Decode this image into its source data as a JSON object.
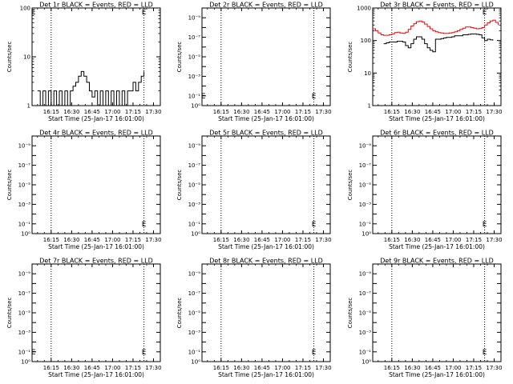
{
  "chart_data": [
    {
      "type": "line",
      "title": "Det 1r BLACK = Events, RED = LLD",
      "xlabel": "Start Time (25-Jan-17 16:01:00)",
      "ylabel": "Counts/sec",
      "y_scale": "log",
      "ylim": [
        1,
        100
      ],
      "y_ticks": [
        {
          "value": 1,
          "label": "1"
        },
        {
          "value": 10,
          "label": "10"
        },
        {
          "value": 100,
          "label": "100"
        }
      ],
      "xlim_minutes": [
        0,
        94
      ],
      "x_ticks": [
        "16:15",
        "16:30",
        "16:45",
        "17:00",
        "17:15",
        "17:30"
      ],
      "x_tick_minutes": [
        14,
        29,
        44,
        59,
        74,
        89
      ],
      "marker_lines_minutes": [
        14,
        82
      ],
      "e_markers": [
        {
          "x_minutes": 1,
          "y": 100
        },
        {
          "x_minutes": 82,
          "y": 100
        }
      ],
      "series": [
        {
          "color": "#000000",
          "x_minutes": [
            4,
            6,
            8,
            10,
            12,
            14,
            16,
            18,
            20,
            22,
            24,
            26,
            28,
            30,
            32,
            34,
            36,
            38,
            40,
            42,
            44,
            46,
            48,
            50,
            52,
            54,
            56,
            58,
            60,
            62,
            64,
            66,
            68,
            70,
            72,
            74,
            76,
            78,
            80,
            82
          ],
          "values": [
            2,
            1,
            2,
            1,
            2,
            1,
            2,
            1,
            2,
            1,
            2,
            1,
            2,
            2.5,
            3,
            4,
            5,
            4,
            3,
            2,
            1.5,
            2,
            1,
            2,
            1,
            2,
            1,
            2,
            1,
            2,
            1,
            2,
            1,
            2,
            2,
            3,
            2,
            3,
            4,
            5
          ]
        }
      ]
    },
    {
      "type": "line",
      "title": "Det 2r BLACK = Events, RED = LLD",
      "xlabel": "Start Time (25-Jan-17 16:01:00)",
      "ylabel": "Counts/sec",
      "y_scale": "log",
      "ylim": [
        1,
        1e-10
      ],
      "y_ticks": [
        {
          "value": 1,
          "label": "10⁰"
        },
        {
          "value": 0.1,
          "label": "10⁻¹"
        },
        {
          "value": 0.001,
          "label": "10⁻³"
        },
        {
          "value": 1e-05,
          "label": "10⁻⁵"
        },
        {
          "value": 1e-07,
          "label": "10⁻⁷"
        },
        {
          "value": 1e-09,
          "label": "10⁻⁹"
        }
      ],
      "xlim_minutes": [
        0,
        94
      ],
      "x_ticks": [
        "16:15",
        "16:30",
        "16:45",
        "17:00",
        "17:15",
        "17:30"
      ],
      "x_tick_minutes": [
        14,
        29,
        44,
        59,
        74,
        89
      ],
      "marker_lines_minutes": [
        14,
        82
      ],
      "e_markers": [
        {
          "x_minutes": 1,
          "y": 0.1
        },
        {
          "x_minutes": 82,
          "y": 0.1
        }
      ],
      "series": []
    },
    {
      "type": "line",
      "title": "Det 3r BLACK = Events, RED = LLD",
      "xlabel": "Start Time (25-Jan-17 16:01:00)",
      "ylabel": "Counts/sec",
      "y_scale": "log",
      "ylim": [
        1,
        1000
      ],
      "y_ticks": [
        {
          "value": 1,
          "label": "1"
        },
        {
          "value": 10,
          "label": "10"
        },
        {
          "value": 100,
          "label": "100"
        },
        {
          "value": 1000,
          "label": "1000"
        }
      ],
      "xlim_minutes": [
        0,
        94
      ],
      "x_ticks": [
        "16:15",
        "16:30",
        "16:45",
        "17:00",
        "17:15",
        "17:30"
      ],
      "x_tick_minutes": [
        14,
        29,
        44,
        59,
        74,
        89
      ],
      "marker_lines_minutes": [
        14,
        82
      ],
      "e_markers": [
        {
          "x_minutes": 82,
          "y": 1000
        }
      ],
      "series": [
        {
          "color": "#000000",
          "x_minutes": [
            8,
            10,
            12,
            14,
            16,
            18,
            20,
            22,
            24,
            26,
            28,
            30,
            32,
            34,
            36,
            38,
            40,
            42,
            44,
            46,
            48,
            50,
            52,
            54,
            56,
            58,
            60,
            62,
            64,
            66,
            68,
            70,
            72,
            74,
            76,
            78,
            80,
            82,
            84,
            86,
            88
          ],
          "values": [
            80,
            85,
            90,
            90,
            90,
            95,
            95,
            90,
            70,
            60,
            80,
            110,
            130,
            130,
            110,
            80,
            60,
            50,
            45,
            110,
            110,
            115,
            120,
            125,
            125,
            130,
            140,
            140,
            140,
            150,
            150,
            155,
            160,
            160,
            155,
            150,
            120,
            100,
            110,
            105,
            100
          ]
        },
        {
          "color": "#ff0000",
          "x_minutes": [
            0,
            2,
            4,
            6,
            8,
            10,
            12,
            14,
            16,
            18,
            20,
            22,
            24,
            26,
            28,
            30,
            32,
            34,
            36,
            38,
            40,
            42,
            44,
            46,
            48,
            50,
            52,
            54,
            56,
            58,
            60,
            62,
            64,
            66,
            68,
            70,
            72,
            74,
            76,
            78,
            80,
            82,
            84,
            86,
            88,
            90,
            92
          ],
          "values": [
            230,
            200,
            170,
            150,
            145,
            145,
            150,
            160,
            175,
            180,
            170,
            165,
            180,
            220,
            280,
            330,
            380,
            400,
            370,
            320,
            270,
            230,
            200,
            185,
            175,
            170,
            165,
            165,
            170,
            175,
            185,
            200,
            220,
            240,
            260,
            260,
            250,
            240,
            230,
            235,
            250,
            300,
            350,
            400,
            420,
            360,
            300
          ]
        }
      ]
    },
    {
      "type": "line",
      "title": "Det 4r BLACK = Events, RED = LLD",
      "xlabel": "Start Time (25-Jan-17 16:01:00)",
      "ylabel": "Counts/sec",
      "y_scale": "log",
      "ylim": [
        1,
        1e-10
      ],
      "y_ticks": [
        {
          "value": 1,
          "label": "10⁰"
        },
        {
          "value": 0.1,
          "label": "10⁻¹"
        },
        {
          "value": 0.001,
          "label": "10⁻³"
        },
        {
          "value": 1e-05,
          "label": "10⁻⁵"
        },
        {
          "value": 1e-07,
          "label": "10⁻⁷"
        },
        {
          "value": 1e-09,
          "label": "10⁻⁹"
        }
      ],
      "xlim_minutes": [
        0,
        94
      ],
      "x_ticks": [
        "16:15",
        "16:30",
        "16:45",
        "17:00",
        "17:15",
        "17:30"
      ],
      "x_tick_minutes": [
        14,
        29,
        44,
        59,
        74,
        89
      ],
      "marker_lines_minutes": [
        14,
        82
      ],
      "e_markers": [
        {
          "x_minutes": 82,
          "y": 0.1
        }
      ],
      "series": []
    },
    {
      "type": "line",
      "title": "Det 5r BLACK = Events, RED = LLD",
      "xlabel": "Start Time (25-Jan-17 16:01:00)",
      "ylabel": "Counts/sec",
      "y_scale": "log",
      "ylim": [
        1,
        1e-10
      ],
      "y_ticks": [
        {
          "value": 1,
          "label": "10⁰"
        },
        {
          "value": 0.1,
          "label": "10⁻¹"
        },
        {
          "value": 0.001,
          "label": "10⁻³"
        },
        {
          "value": 1e-05,
          "label": "10⁻⁵"
        },
        {
          "value": 1e-07,
          "label": "10⁻⁷"
        },
        {
          "value": 1e-09,
          "label": "10⁻⁹"
        }
      ],
      "xlim_minutes": [
        0,
        94
      ],
      "x_ticks": [
        "16:15",
        "16:30",
        "16:45",
        "17:00",
        "17:15",
        "17:30"
      ],
      "x_tick_minutes": [
        14,
        29,
        44,
        59,
        74,
        89
      ],
      "marker_lines_minutes": [
        14,
        82
      ],
      "e_markers": [
        {
          "x_minutes": 82,
          "y": 0.1
        }
      ],
      "series": []
    },
    {
      "type": "line",
      "title": "Det 6r BLACK = Events, RED = LLD",
      "xlabel": "Start Time (25-Jan-17 16:01:00)",
      "ylabel": "Counts/sec",
      "y_scale": "log",
      "ylim": [
        1,
        1e-10
      ],
      "y_ticks": [
        {
          "value": 1,
          "label": "10⁰"
        },
        {
          "value": 0.1,
          "label": "10⁻¹"
        },
        {
          "value": 0.001,
          "label": "10⁻³"
        },
        {
          "value": 1e-05,
          "label": "10⁻⁵"
        },
        {
          "value": 1e-07,
          "label": "10⁻⁷"
        },
        {
          "value": 1e-09,
          "label": "10⁻⁹"
        }
      ],
      "xlim_minutes": [
        0,
        94
      ],
      "x_ticks": [
        "16:15",
        "16:30",
        "16:45",
        "17:00",
        "17:15",
        "17:30"
      ],
      "x_tick_minutes": [
        14,
        29,
        44,
        59,
        74,
        89
      ],
      "marker_lines_minutes": [
        14,
        82
      ],
      "e_markers": [
        {
          "x_minutes": 82,
          "y": 0.1
        }
      ],
      "series": []
    },
    {
      "type": "line",
      "title": "Det 7r BLACK = Events, RED = LLD",
      "xlabel": "Start Time (25-Jan-17 16:01:00)",
      "ylabel": "Counts/sec",
      "y_scale": "log",
      "ylim": [
        1,
        1e-10
      ],
      "y_ticks": [
        {
          "value": 1,
          "label": "10⁰"
        },
        {
          "value": 0.1,
          "label": "10⁻¹"
        },
        {
          "value": 0.001,
          "label": "10⁻³"
        },
        {
          "value": 1e-05,
          "label": "10⁻⁵"
        },
        {
          "value": 1e-07,
          "label": "10⁻⁷"
        },
        {
          "value": 1e-09,
          "label": "10⁻⁹"
        }
      ],
      "xlim_minutes": [
        0,
        94
      ],
      "x_ticks": [
        "16:15",
        "16:30",
        "16:45",
        "17:00",
        "17:15",
        "17:30"
      ],
      "x_tick_minutes": [
        14,
        29,
        44,
        59,
        74,
        89
      ],
      "marker_lines_minutes": [
        14,
        82
      ],
      "e_markers": [
        {
          "x_minutes": 1,
          "y": 0.1
        },
        {
          "x_minutes": 82,
          "y": 0.1
        }
      ],
      "series": []
    },
    {
      "type": "line",
      "title": "Det 8r BLACK = Events, RED = LLD",
      "xlabel": "Start Time (25-Jan-17 16:01:00)",
      "ylabel": "Counts/sec",
      "y_scale": "log",
      "ylim": [
        1,
        1e-10
      ],
      "y_ticks": [
        {
          "value": 1,
          "label": "10⁰"
        },
        {
          "value": 0.1,
          "label": "10⁻¹"
        },
        {
          "value": 0.001,
          "label": "10⁻³"
        },
        {
          "value": 1e-05,
          "label": "10⁻⁵"
        },
        {
          "value": 1e-07,
          "label": "10⁻⁷"
        },
        {
          "value": 1e-09,
          "label": "10⁻⁹"
        }
      ],
      "xlim_minutes": [
        0,
        94
      ],
      "x_ticks": [
        "16:15",
        "16:30",
        "16:45",
        "17:00",
        "17:15",
        "17:30"
      ],
      "x_tick_minutes": [
        14,
        29,
        44,
        59,
        74,
        89
      ],
      "marker_lines_minutes": [
        14,
        82
      ],
      "e_markers": [
        {
          "x_minutes": 82,
          "y": 0.1
        }
      ],
      "series": []
    },
    {
      "type": "line",
      "title": "Det 9r BLACK = Events, RED = LLD",
      "xlabel": "Start Time (25-Jan-17 16:01:00)",
      "ylabel": "Counts/sec",
      "y_scale": "log",
      "ylim": [
        1,
        1e-10
      ],
      "y_ticks": [
        {
          "value": 1,
          "label": "10⁰"
        },
        {
          "value": 0.1,
          "label": "10⁻¹"
        },
        {
          "value": 0.001,
          "label": "10⁻³"
        },
        {
          "value": 1e-05,
          "label": "10⁻⁵"
        },
        {
          "value": 1e-07,
          "label": "10⁻⁷"
        },
        {
          "value": 1e-09,
          "label": "10⁻⁹"
        }
      ],
      "xlim_minutes": [
        0,
        94
      ],
      "x_ticks": [
        "16:15",
        "16:30",
        "16:45",
        "17:00",
        "17:15",
        "17:30"
      ],
      "x_tick_minutes": [
        14,
        29,
        44,
        59,
        74,
        89
      ],
      "marker_lines_minutes": [
        14,
        82
      ],
      "e_markers": [
        {
          "x_minutes": 82,
          "y": 0.1
        }
      ],
      "series": []
    }
  ]
}
